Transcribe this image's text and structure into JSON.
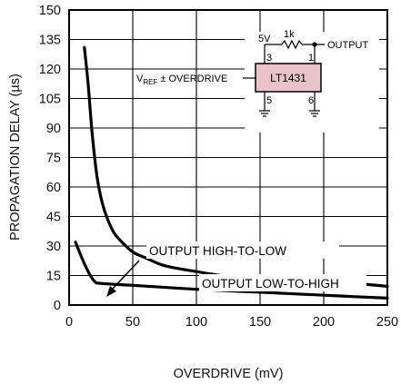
{
  "chart_data": {
    "type": "line",
    "xlabel": "OVERDRIVE (mV)",
    "ylabel": "PROPAGATION DELAY (µs)",
    "xlim": [
      0,
      250
    ],
    "ylim": [
      0,
      150
    ],
    "xticks": [
      "0",
      "50",
      "100",
      "150",
      "200",
      "250"
    ],
    "yticks": [
      "0",
      "15",
      "30",
      "45",
      "60",
      "75",
      "90",
      "105",
      "120",
      "135",
      "150"
    ],
    "grid": true,
    "series": [
      {
        "name": "OUTPUT HIGH-TO-LOW",
        "x": [
          12,
          15,
          18,
          22,
          26,
          30,
          35,
          40,
          50,
          60,
          75,
          100,
          125,
          150,
          175,
          200,
          225,
          250
        ],
        "y": [
          131,
          112,
          88,
          65,
          52,
          44,
          37,
          33,
          27,
          24,
          20,
          17,
          14.5,
          13,
          13.5,
          12.5,
          11,
          9.5
        ]
      },
      {
        "name": "OUTPUT LOW-TO-HIGH",
        "x": [
          5,
          10,
          15,
          20,
          25,
          50,
          100,
          150,
          200,
          250
        ],
        "y": [
          32,
          24,
          17,
          12,
          11,
          10,
          8,
          6.5,
          5,
          3.5
        ]
      }
    ],
    "annotations": [
      {
        "text": "OUTPUT HIGH-TO-LOW"
      },
      {
        "text": "OUTPUT LOW-TO-HIGH"
      }
    ],
    "inset": {
      "input_label": "V",
      "input_sub": "REF",
      "input_suffix": " ± OVERDRIVE",
      "chip_label": "LT1431",
      "chip_color": "#e9c3c9",
      "supply_label": "5V",
      "resistor_label": "1k",
      "output_label": "OUTPUT",
      "pins": [
        "3",
        "1",
        "5",
        "6"
      ]
    }
  }
}
